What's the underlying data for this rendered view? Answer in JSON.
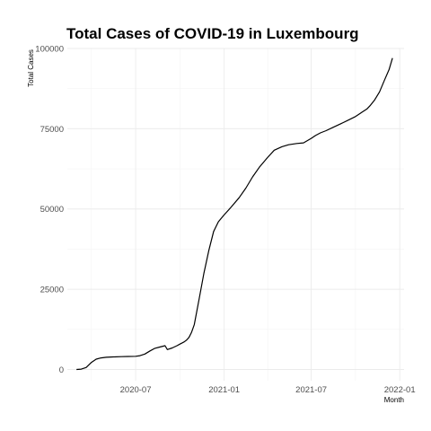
{
  "chart_data": {
    "type": "line",
    "title": "Total Cases of COVID-19 in Luxembourg",
    "xlabel": "Month",
    "ylabel": "Total Cases",
    "x_ticks": [
      {
        "date": "2020-07-01",
        "label": "2020-07"
      },
      {
        "date": "2021-01-01",
        "label": "2021-01"
      },
      {
        "date": "2021-07-01",
        "label": "2021-07"
      },
      {
        "date": "2022-01-01",
        "label": "2022-01"
      }
    ],
    "y_ticks": [
      {
        "value": 0,
        "label": "0"
      },
      {
        "value": 25000,
        "label": "25000"
      },
      {
        "value": 50000,
        "label": "50000"
      },
      {
        "value": 75000,
        "label": "75000"
      },
      {
        "value": 100000,
        "label": "100000"
      }
    ],
    "xlim": [
      "2020-02-10",
      "2022-01-10"
    ],
    "ylim": [
      -3500,
      100000
    ],
    "grid": true,
    "legend": "none",
    "series": [
      {
        "x": [
          "2020-02-29",
          "2020-03-10",
          "2020-03-20",
          "2020-03-31",
          "2020-04-10",
          "2020-04-20",
          "2020-05-01",
          "2020-05-15",
          "2020-06-01",
          "2020-06-15",
          "2020-07-01",
          "2020-07-10",
          "2020-07-20",
          "2020-07-31",
          "2020-08-10",
          "2020-08-20",
          "2020-08-31",
          "2020-09-05",
          "2020-09-15",
          "2020-09-25",
          "2020-10-01",
          "2020-10-10",
          "2020-10-15",
          "2020-10-20",
          "2020-10-25",
          "2020-10-31",
          "2020-11-10",
          "2020-11-20",
          "2020-11-30",
          "2020-12-10",
          "2020-12-20",
          "2020-12-31",
          "2021-01-15",
          "2021-02-01",
          "2021-02-15",
          "2021-03-01",
          "2021-03-15",
          "2021-04-01",
          "2021-04-15",
          "2021-05-01",
          "2021-05-15",
          "2021-06-01",
          "2021-06-15",
          "2021-07-01",
          "2021-07-10",
          "2021-07-20",
          "2021-08-01",
          "2021-08-15",
          "2021-09-01",
          "2021-09-15",
          "2021-10-01",
          "2021-10-15",
          "2021-10-25",
          "2021-11-01",
          "2021-11-10",
          "2021-11-20",
          "2021-11-30",
          "2021-12-10",
          "2021-12-17"
        ],
        "y": [
          0,
          100,
          600,
          2200,
          3200,
          3600,
          3800,
          3900,
          4000,
          4050,
          4100,
          4300,
          4800,
          5800,
          6600,
          7000,
          7400,
          6200,
          6700,
          7400,
          7900,
          8600,
          9200,
          10000,
          11500,
          14000,
          22000,
          30000,
          37000,
          43000,
          46000,
          48000,
          50500,
          53500,
          56500,
          60000,
          63000,
          66000,
          68300,
          69400,
          70000,
          70400,
          70600,
          72000,
          72900,
          73700,
          74400,
          75400,
          76600,
          77600,
          78800,
          80200,
          81200,
          82300,
          84000,
          86500,
          90000,
          93500,
          97000
        ]
      }
    ]
  }
}
